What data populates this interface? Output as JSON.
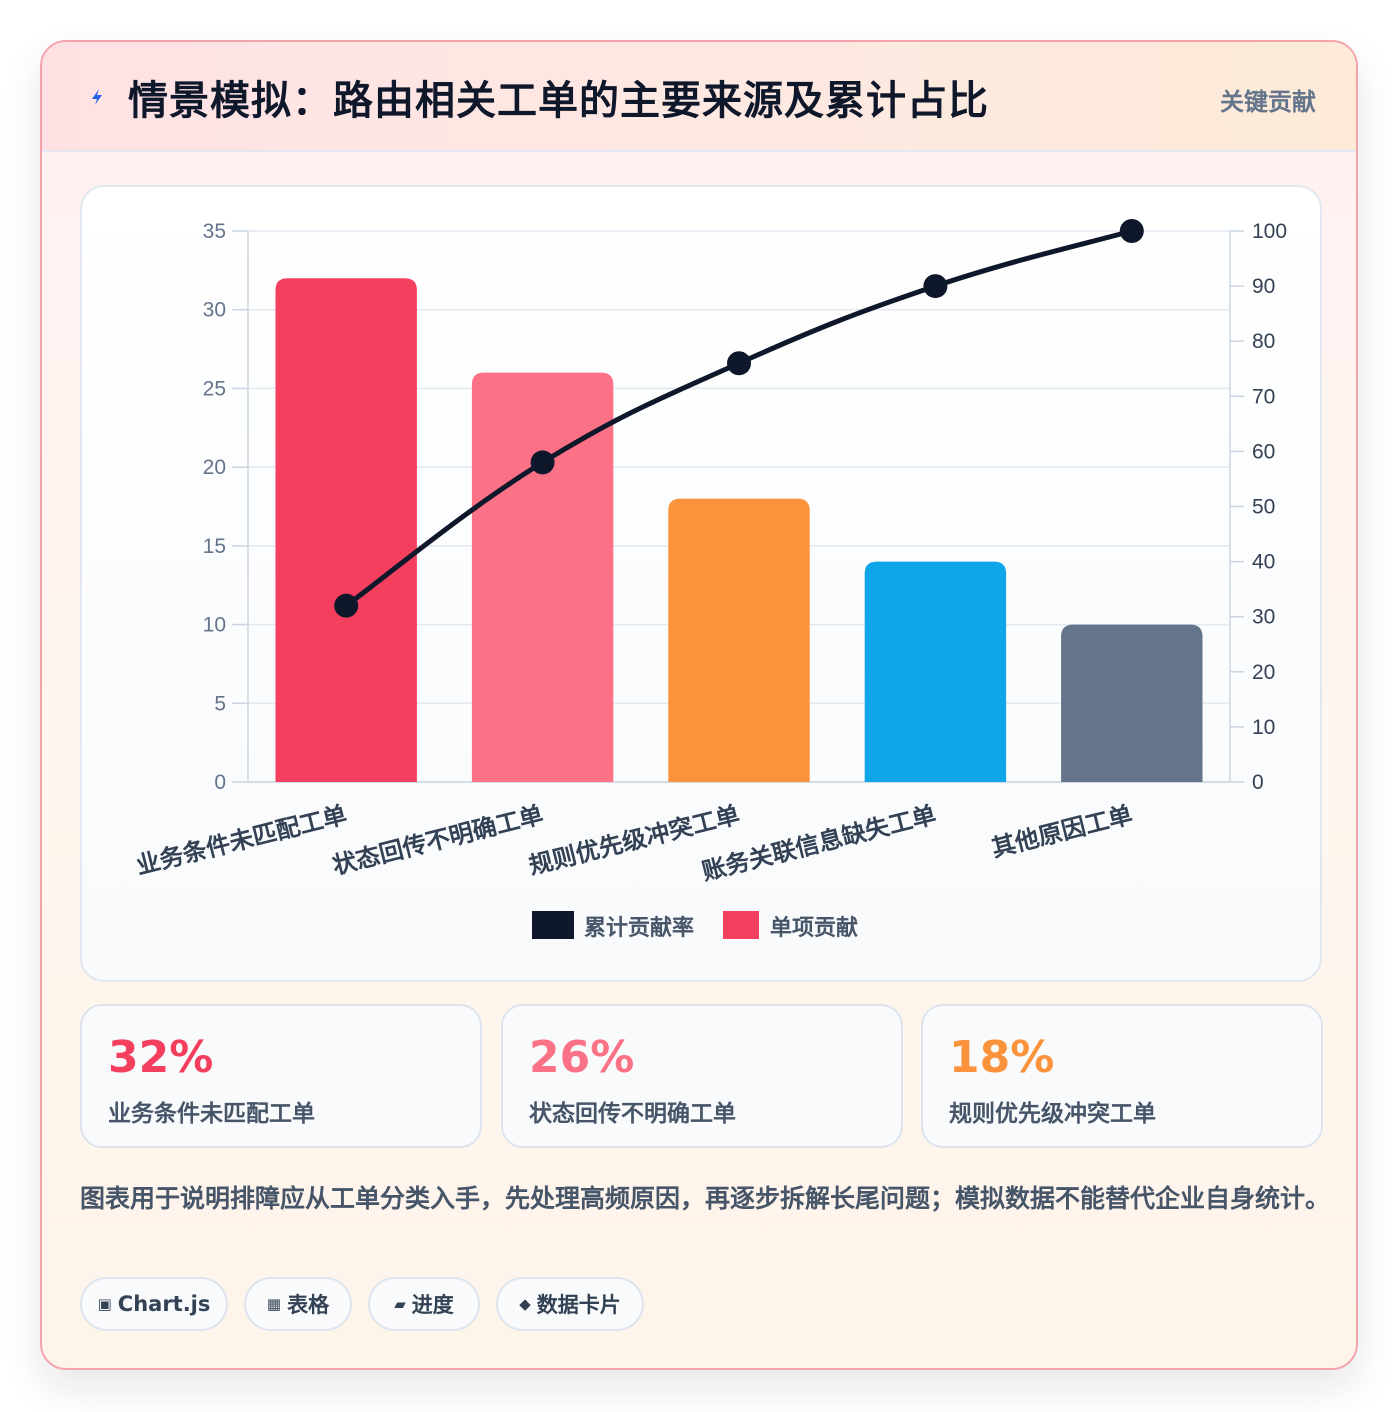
{
  "header": {
    "title": "情景模拟：路由相关工单的主要来源及累计占比",
    "badge": "关键贡献",
    "icon": "lightning-icon"
  },
  "chart_data": {
    "type": "bar",
    "categories": [
      "业务条件未匹配工单",
      "状态回传不明确工单",
      "规则优先级冲突工单",
      "账务关联信息缺失工单",
      "其他原因工单"
    ],
    "series": [
      {
        "name": "单项贡献",
        "type": "bar",
        "axis": "left",
        "values": [
          32,
          26,
          18,
          14,
          10
        ],
        "colors": [
          "#f43f5e",
          "#fb7185",
          "#fb923c",
          "#0ea5e9",
          "#64748b"
        ]
      },
      {
        "name": "累计贡献率",
        "type": "line",
        "axis": "right",
        "values": [
          32,
          58,
          76,
          90,
          100
        ],
        "color": "#0f172a"
      }
    ],
    "ylim": [
      0,
      35
    ],
    "y_ticks": [
      0,
      5,
      10,
      15,
      20,
      25,
      30,
      35
    ],
    "y2lim": [
      0,
      100
    ],
    "y2_ticks": [
      0,
      10,
      20,
      30,
      40,
      50,
      60,
      70,
      80,
      90,
      100
    ],
    "legend": [
      "累计贡献率",
      "单项贡献"
    ],
    "legend_position": "bottom",
    "grid": true
  },
  "stats": [
    {
      "value": "32%",
      "label": "业务条件未匹配工单",
      "color": "#f43f5e"
    },
    {
      "value": "26%",
      "label": "状态回传不明确工单",
      "color": "#fb7185"
    },
    {
      "value": "18%",
      "label": "规则优先级冲突工单",
      "color": "#fb923c"
    }
  ],
  "note": "图表用于说明排障应从工单分类入手，先处理高频原因，再逐步拆解长尾问题；模拟数据不能替代企业自身统计。",
  "tags": [
    {
      "icon": "▣",
      "label": "Chart.js"
    },
    {
      "icon": "▦",
      "label": "表格"
    },
    {
      "icon": "▰",
      "label": "进度"
    },
    {
      "icon": "◆",
      "label": "数据卡片"
    }
  ]
}
